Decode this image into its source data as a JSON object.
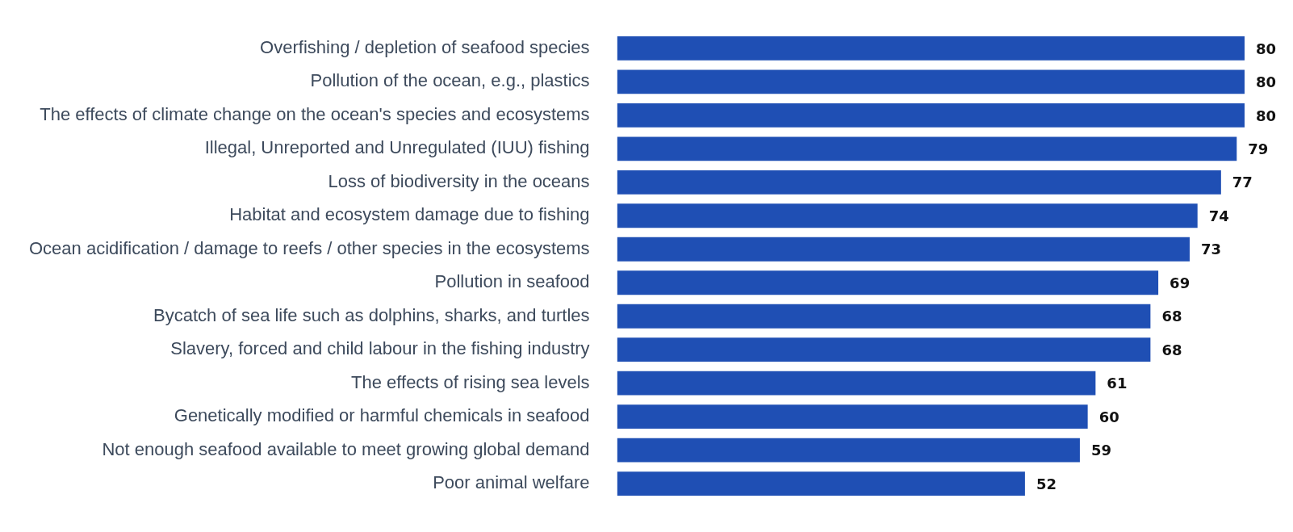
{
  "chart_data": {
    "type": "bar",
    "orientation": "horizontal",
    "categories": [
      "Overfishing / depletion of seafood species",
      "Pollution of the ocean, e.g., plastics",
      "The effects of climate change on the ocean's species and ecosystems",
      "Illegal, Unreported and Unregulated (IUU) fishing",
      "Loss of biodiversity in the oceans",
      "Habitat and ecosystem damage due to fishing",
      "Ocean acidification / damage to reefs / other species in the ecosystems",
      "Pollution in seafood",
      "Bycatch of sea life such as dolphins, sharks, and turtles",
      "Slavery, forced and child labour in the fishing industry",
      "The effects of rising sea levels",
      "Genetically modified or harmful chemicals in seafood",
      "Not enough seafood available to meet growing global demand",
      "Poor animal welfare"
    ],
    "values": [
      80,
      80,
      80,
      79,
      77,
      74,
      73,
      69,
      68,
      68,
      61,
      60,
      59,
      52
    ],
    "color": "#1f4fb4",
    "xlim": [
      0,
      80
    ],
    "data_labels": true,
    "legend": false,
    "tick_labels": "y"
  }
}
